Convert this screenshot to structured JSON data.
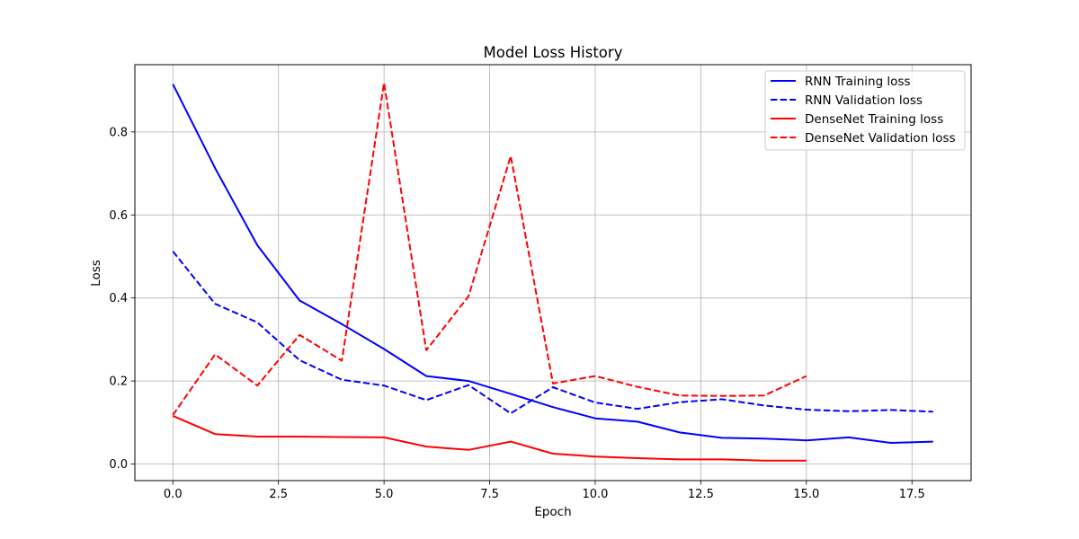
{
  "chart_data": {
    "type": "line",
    "title": "Model Loss History",
    "xlabel": "Epoch",
    "ylabel": "Loss",
    "xlim": [
      -0.9,
      18.9
    ],
    "ylim": [
      -0.04,
      0.962
    ],
    "xticks": [
      0.0,
      2.5,
      5.0,
      7.5,
      10.0,
      12.5,
      15.0,
      17.5
    ],
    "xtick_labels": [
      "0.0",
      "2.5",
      "5.0",
      "7.5",
      "10.0",
      "12.5",
      "15.0",
      "17.5"
    ],
    "yticks": [
      0.0,
      0.2,
      0.4,
      0.6,
      0.8
    ],
    "ytick_labels": [
      "0.0",
      "0.2",
      "0.4",
      "0.6",
      "0.8"
    ],
    "grid": true,
    "legend_position": "top-right",
    "series": [
      {
        "name": "RNN Training loss",
        "color": "#0000ff",
        "style": "solid",
        "x": [
          0,
          1,
          2,
          3,
          4,
          5,
          6,
          7,
          8,
          9,
          10,
          11,
          12,
          13,
          14,
          15,
          16,
          17,
          18
        ],
        "y": [
          0.915,
          0.713,
          0.527,
          0.394,
          0.337,
          0.277,
          0.212,
          0.2,
          0.169,
          0.137,
          0.11,
          0.102,
          0.076,
          0.063,
          0.061,
          0.057,
          0.064,
          0.051,
          0.054
        ]
      },
      {
        "name": "RNN Validation loss",
        "color": "#0000ff",
        "style": "dashed",
        "x": [
          0,
          1,
          2,
          3,
          4,
          5,
          6,
          7,
          8,
          9,
          10,
          11,
          12,
          13,
          14,
          15,
          16,
          17,
          18
        ],
        "y": [
          0.512,
          0.386,
          0.341,
          0.25,
          0.203,
          0.189,
          0.154,
          0.19,
          0.122,
          0.185,
          0.148,
          0.133,
          0.149,
          0.156,
          0.141,
          0.131,
          0.127,
          0.13,
          0.126
        ]
      },
      {
        "name": "DenseNet Training loss",
        "color": "#ff0000",
        "style": "solid",
        "x": [
          0,
          1,
          2,
          3,
          4,
          5,
          6,
          7,
          8,
          9,
          10,
          11,
          12,
          13,
          14,
          15
        ],
        "y": [
          0.116,
          0.072,
          0.066,
          0.066,
          0.065,
          0.064,
          0.042,
          0.034,
          0.054,
          0.025,
          0.018,
          0.014,
          0.011,
          0.011,
          0.008,
          0.008
        ]
      },
      {
        "name": "DenseNet Validation loss",
        "color": "#ff0000",
        "style": "dashed",
        "x": [
          0,
          1,
          2,
          3,
          4,
          5,
          6,
          7,
          8,
          9,
          10,
          11,
          12,
          13,
          14,
          15
        ],
        "y": [
          0.118,
          0.264,
          0.189,
          0.311,
          0.249,
          0.918,
          0.274,
          0.404,
          0.742,
          0.194,
          0.212,
          0.186,
          0.165,
          0.164,
          0.165,
          0.212
        ]
      }
    ]
  }
}
